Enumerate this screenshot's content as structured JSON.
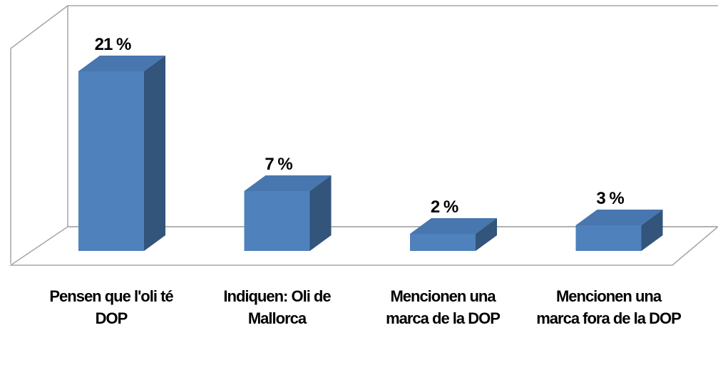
{
  "chart_data": {
    "type": "bar3d",
    "categories": [
      "Pensen que l'oli té DOP",
      "Indiquen: Oli de Mallorca",
      "Mencionen una marca de la DOP",
      "Mencionen una marca fora de la DOP"
    ],
    "values": [
      21,
      7,
      2,
      3
    ],
    "value_labels": [
      "21 %",
      "7 %",
      "2 %",
      "3 %"
    ],
    "color": "#4f81bd"
  }
}
